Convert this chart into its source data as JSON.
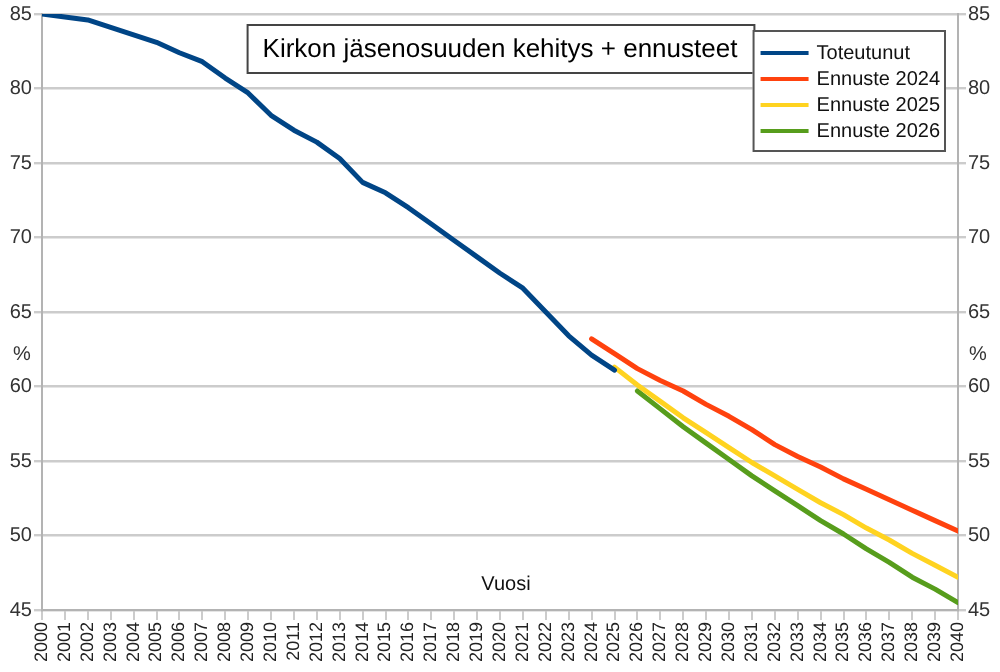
{
  "chart_data": {
    "type": "line",
    "title": "Kirkon jäsenosuuden kehitys + ennusteet",
    "xlabel": "Vuosi",
    "ylabel": "%",
    "y2label": "%",
    "series": [
      {
        "name": "Toteutunut",
        "color": "#004586",
        "x": [
          2000,
          2001,
          2002,
          2003,
          2004,
          2005,
          2006,
          2007,
          2008,
          2009,
          2010,
          2011,
          2012,
          2013,
          2014,
          2015,
          2016,
          2017,
          2018,
          2019,
          2020,
          2021,
          2022,
          2023,
          2024,
          2025
        ],
        "values": [
          85.0,
          84.8,
          84.6,
          84.1,
          83.6,
          83.1,
          82.4,
          81.8,
          80.7,
          79.7,
          78.2,
          77.2,
          76.4,
          75.3,
          73.7,
          73.0,
          72.0,
          70.9,
          69.8,
          68.7,
          67.6,
          66.6,
          65.0,
          63.4,
          62.1,
          61.1
        ]
      },
      {
        "name": "Ennuste 2024",
        "color": "#ff420e",
        "x": [
          2024,
          2025,
          2026,
          2027,
          2028,
          2029,
          2030,
          2031,
          2032,
          2033,
          2034,
          2035,
          2036,
          2037,
          2038,
          2039,
          2040
        ],
        "values": [
          63.2,
          62.2,
          61.2,
          60.4,
          59.7,
          58.8,
          58.0,
          57.1,
          56.1,
          55.3,
          54.6,
          53.8,
          53.1,
          52.4,
          51.7,
          51.0,
          50.3
        ]
      },
      {
        "name": "Ennuste 2025",
        "color": "#ffd320",
        "x": [
          2025,
          2026,
          2027,
          2028,
          2029,
          2030,
          2031,
          2032,
          2033,
          2034,
          2035,
          2036,
          2037,
          2038,
          2039,
          2040
        ],
        "values": [
          61.3,
          60.1,
          59.0,
          57.9,
          56.9,
          55.9,
          54.9,
          54.0,
          53.1,
          52.2,
          51.4,
          50.5,
          49.7,
          48.8,
          48.0,
          47.2
        ]
      },
      {
        "name": "Ennuste 2026",
        "color": "#579d1c",
        "x": [
          2026,
          2027,
          2028,
          2029,
          2030,
          2031,
          2032,
          2033,
          2034,
          2035,
          2036,
          2037,
          2038,
          2039,
          2040
        ],
        "values": [
          59.7,
          58.5,
          57.3,
          56.2,
          55.1,
          54.0,
          53.0,
          52.0,
          51.0,
          50.1,
          49.1,
          48.2,
          47.2,
          46.4,
          45.5
        ]
      }
    ],
    "xlim": [
      2000,
      2040
    ],
    "xticks": [
      2000,
      2001,
      2002,
      2003,
      2004,
      2005,
      2006,
      2007,
      2008,
      2009,
      2010,
      2011,
      2012,
      2013,
      2014,
      2015,
      2016,
      2017,
      2018,
      2019,
      2020,
      2021,
      2022,
      2023,
      2024,
      2025,
      2026,
      2027,
      2028,
      2029,
      2030,
      2031,
      2032,
      2033,
      2034,
      2035,
      2036,
      2037,
      2038,
      2039,
      2040
    ],
    "ylim": [
      45,
      85
    ],
    "yticks": [
      45,
      50,
      55,
      60,
      65,
      70,
      75,
      80,
      85
    ],
    "y2lim": [
      45,
      85
    ],
    "y2ticks": [
      45,
      50,
      55,
      60,
      65,
      70,
      75,
      80,
      85
    ],
    "grid": "y",
    "legend": "top right",
    "marker": "none",
    "line_style": "solid"
  }
}
